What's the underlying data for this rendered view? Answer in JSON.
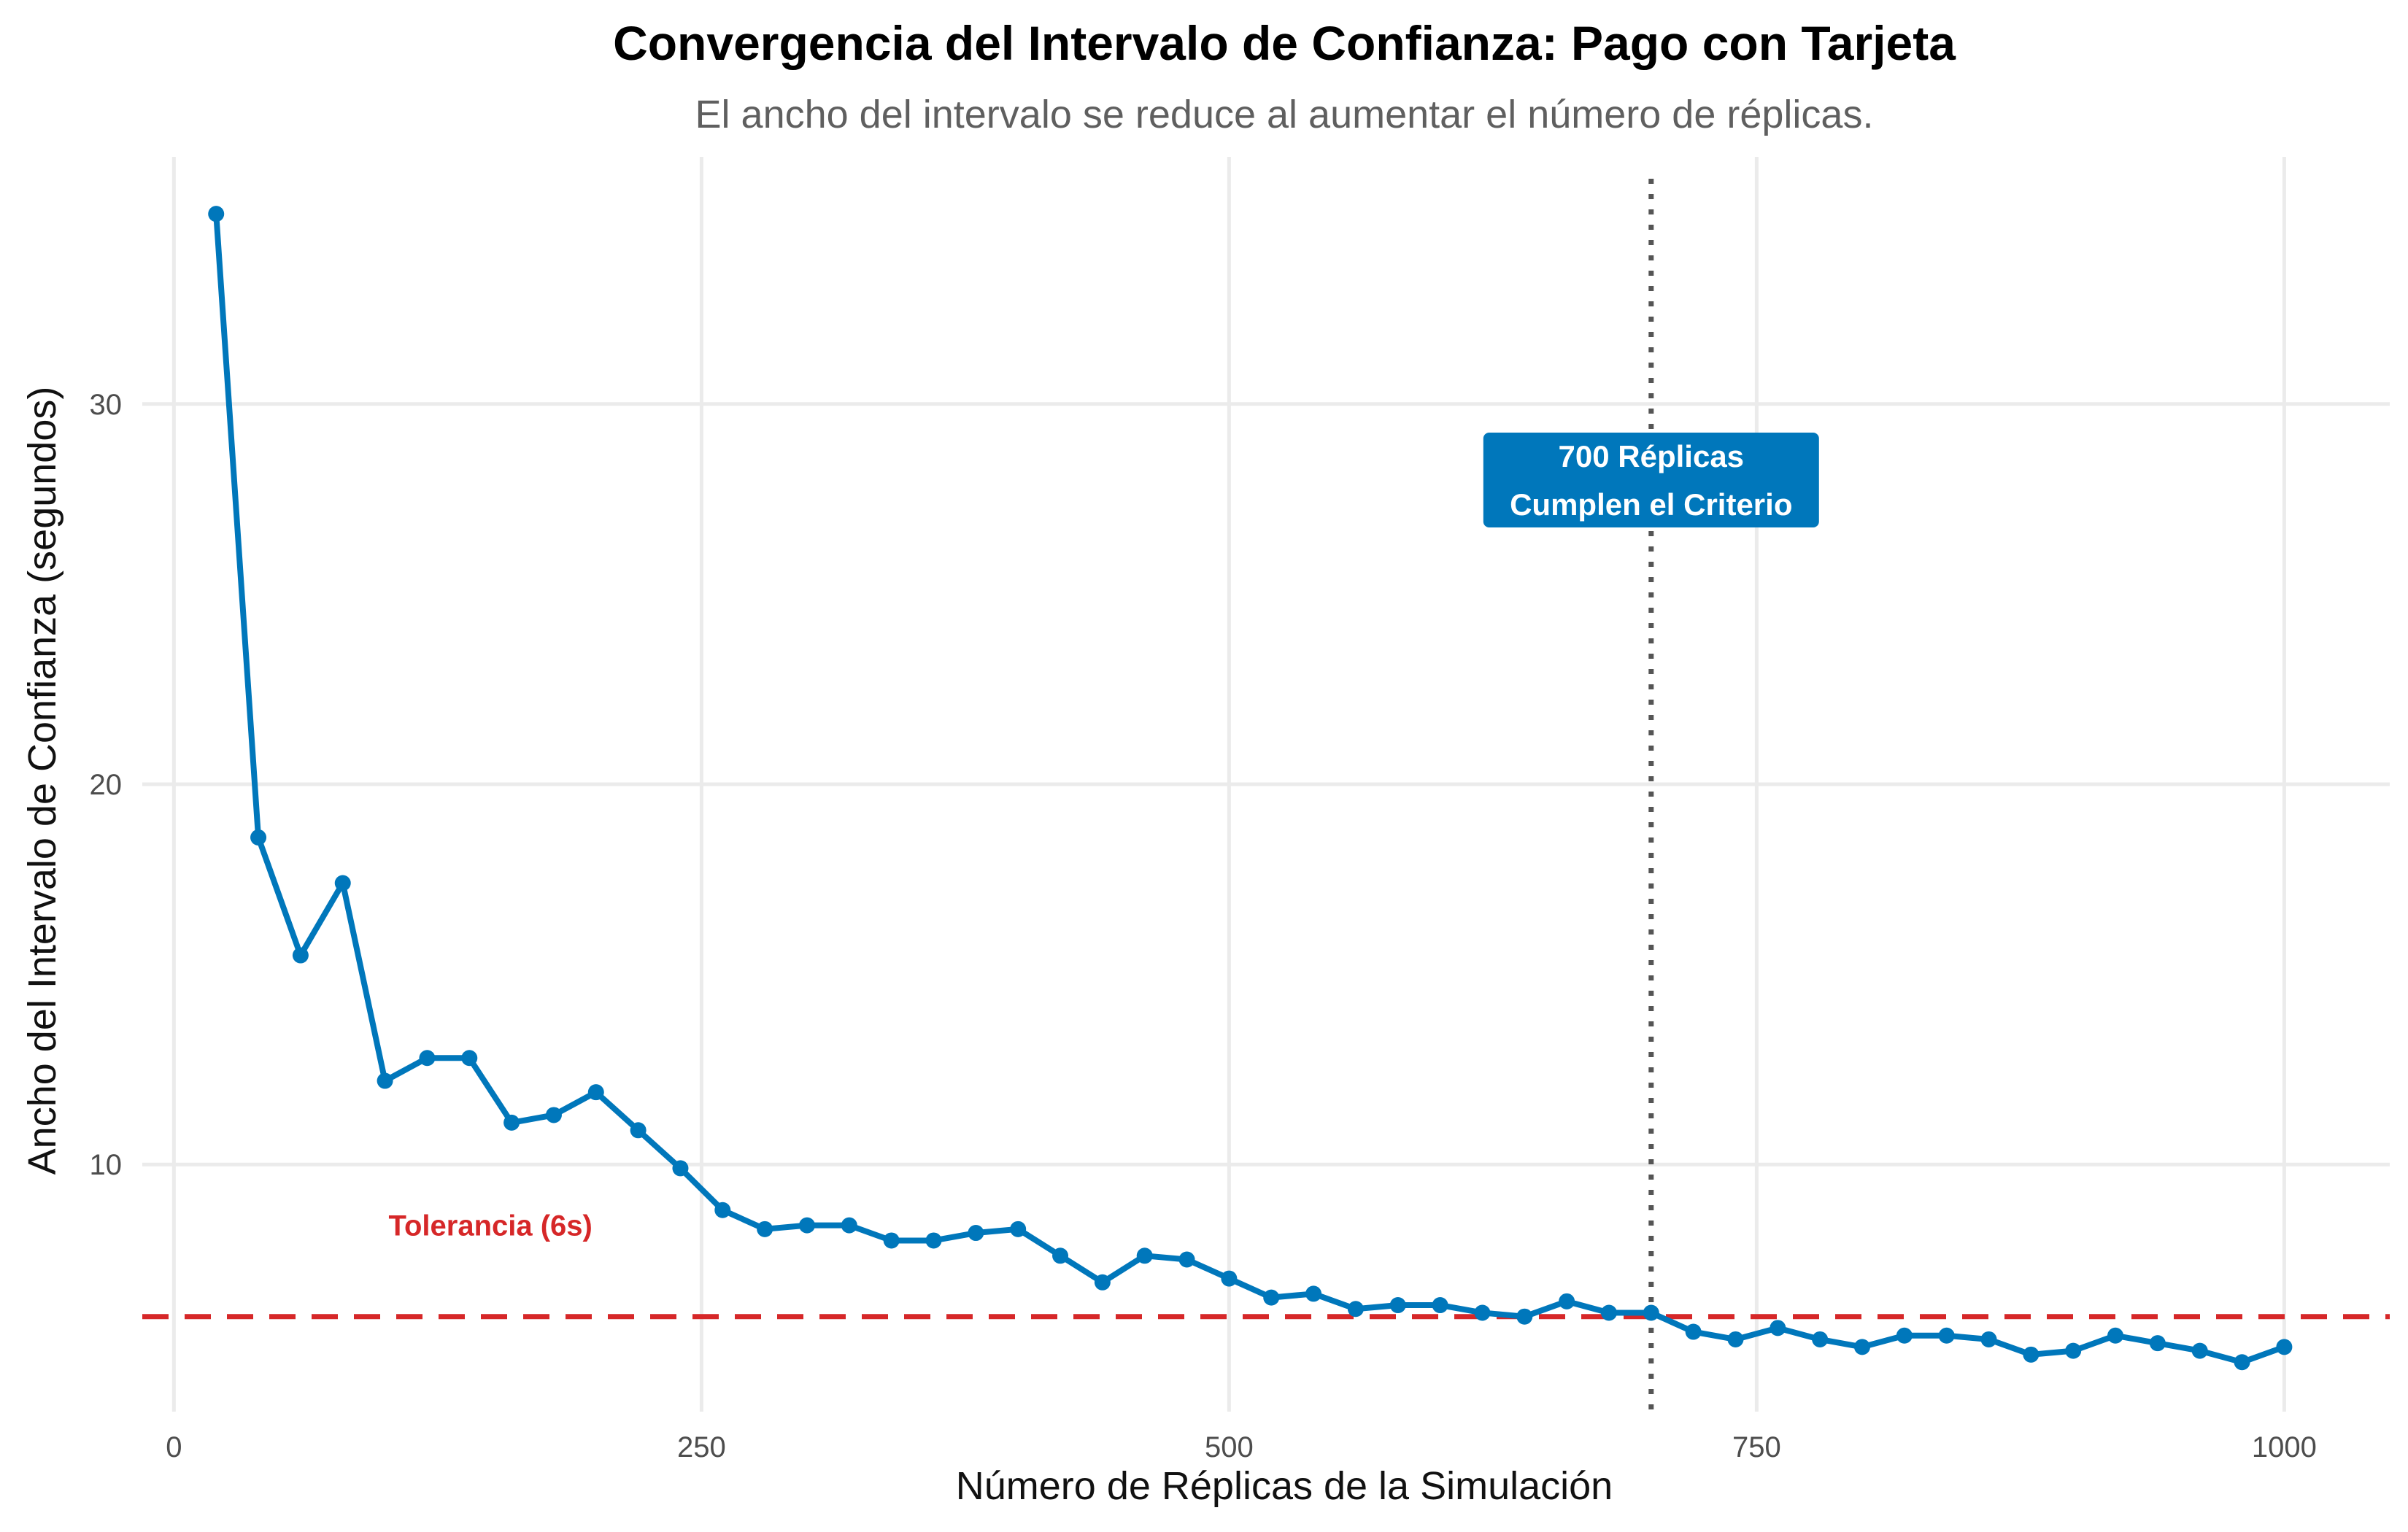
{
  "chart_data": {
    "type": "line",
    "title": "Convergencia del Intervalo de Confianza: Pago con Tarjeta",
    "subtitle": "El ancho del intervalo se reduce al aumentar el número de réplicas.",
    "xlabel": "Número de Réplicas de la Simulación",
    "ylabel": "Ancho del Intervalo de Confianza (segundos)",
    "xlim": [
      -15,
      1050
    ],
    "ylim": [
      3.5,
      36.5
    ],
    "x_ticks": [
      0,
      250,
      500,
      750,
      1000
    ],
    "y_ticks": [
      10,
      20,
      30
    ],
    "x_tick_labels": [
      "0",
      "250",
      "500",
      "750",
      "1000"
    ],
    "y_tick_labels": [
      "10",
      "20",
      "30"
    ],
    "grid": true,
    "series_color": "#0077bb",
    "x": [
      20,
      40,
      60,
      80,
      100,
      120,
      140,
      160,
      180,
      200,
      220,
      240,
      260,
      280,
      300,
      320,
      340,
      360,
      380,
      400,
      420,
      440,
      460,
      480,
      500,
      520,
      540,
      560,
      580,
      600,
      620,
      640,
      660,
      680,
      700,
      720,
      740,
      760,
      780,
      800,
      820,
      840,
      860,
      880,
      900,
      920,
      940,
      960,
      980,
      1000
    ],
    "y": [
      35.0,
      18.6,
      15.5,
      17.4,
      12.2,
      12.8,
      12.8,
      11.1,
      11.3,
      11.9,
      10.9,
      9.9,
      8.8,
      8.3,
      8.4,
      8.4,
      8.0,
      8.0,
      8.2,
      8.3,
      7.6,
      6.9,
      7.6,
      7.5,
      7.0,
      6.5,
      6.6,
      6.2,
      6.3,
      6.3,
      6.1,
      6.0,
      6.4,
      6.1,
      6.1,
      5.6,
      5.4,
      5.7,
      5.4,
      5.2,
      5.5,
      5.5,
      5.4,
      5.0,
      5.1,
      5.5,
      5.3,
      5.1,
      4.8,
      5.2
    ],
    "threshold": {
      "value": 6,
      "label": "Tolerancia (6s)",
      "label_x": 150,
      "label_y": 8.4,
      "color": "#d62728"
    },
    "vline": {
      "value": 700,
      "color": "#555555"
    },
    "annotation": {
      "lines": [
        "700 Réplicas",
        "Cumplen el Criterio"
      ],
      "x": 700,
      "y": 28.0,
      "background": "#0077bb"
    }
  }
}
